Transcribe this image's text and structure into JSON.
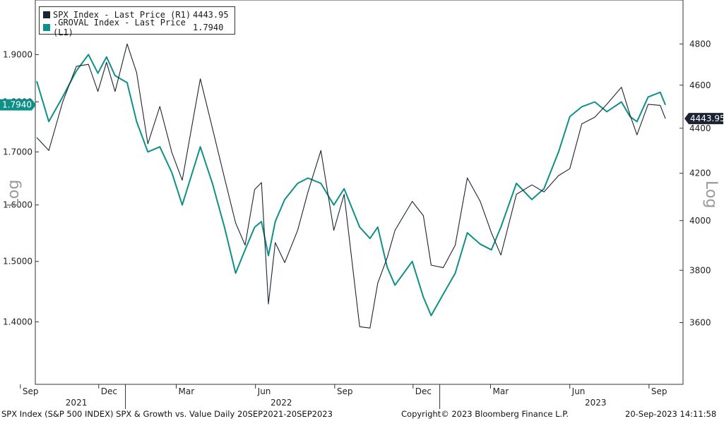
{
  "chart_data": {
    "type": "line",
    "footer": {
      "left": "SPX Index (S&P 500 INDEX) SPX & Growth vs. Value  Daily 20SEP2021-20SEP2023",
      "center": "Copyright© 2023 Bloomberg Finance L.P.",
      "right": "20-Sep-2023 14:11:58"
    },
    "left_axis": {
      "label": "Log",
      "scale": "log",
      "ylim": [
        1.33,
        1.99
      ],
      "ticks": [
        "1.4000",
        "1.5000",
        "1.6000",
        "1.7000",
        "1.8000",
        "1.9000"
      ],
      "tick_values": [
        1.4,
        1.5,
        1.6,
        1.7,
        1.8,
        1.9
      ]
    },
    "right_axis": {
      "label": "Log",
      "scale": "log",
      "ylim": [
        3440,
        4950
      ],
      "ticks": [
        "3600",
        "3800",
        "4000",
        "4200",
        "4400",
        "4600",
        "4800"
      ],
      "tick_values": [
        3600,
        3800,
        4000,
        4200,
        4400,
        4600,
        4800
      ]
    },
    "x_axis": {
      "range": [
        "2021-09-20",
        "2023-09-20"
      ],
      "month_ticks": [
        {
          "label": "Sep",
          "date": "2021-09-01"
        },
        {
          "label": "Dec",
          "date": "2021-12-01"
        },
        {
          "label": "Mar",
          "date": "2022-03-01"
        },
        {
          "label": "Jun",
          "date": "2022-06-01"
        },
        {
          "label": "Sep",
          "date": "2022-09-01"
        },
        {
          "label": "Dec",
          "date": "2022-12-01"
        },
        {
          "label": "Mar",
          "date": "2023-03-01"
        },
        {
          "label": "Jun",
          "date": "2023-06-01"
        },
        {
          "label": "Sep",
          "date": "2023-09-01"
        }
      ],
      "year_labels": [
        {
          "label": "2021",
          "date": "2021-11-05"
        },
        {
          "label": "2022",
          "date": "2022-07-01"
        },
        {
          "label": "2023",
          "date": "2023-07-01"
        }
      ]
    },
    "grid": false,
    "legend_position": "top-left",
    "series": [
      {
        "name": "SPX Index - Last Price (R1)",
        "last_value": "4443.95",
        "axis": "right",
        "color": "#1c2333",
        "points": [
          [
            "2021-09-20",
            4358
          ],
          [
            "2021-10-04",
            4300
          ],
          [
            "2021-10-20",
            4520
          ],
          [
            "2021-11-05",
            4690
          ],
          [
            "2021-11-19",
            4700
          ],
          [
            "2021-11-30",
            4570
          ],
          [
            "2021-12-10",
            4710
          ],
          [
            "2021-12-20",
            4570
          ],
          [
            "2022-01-03",
            4800
          ],
          [
            "2022-01-14",
            4660
          ],
          [
            "2022-01-27",
            4330
          ],
          [
            "2022-02-10",
            4500
          ],
          [
            "2022-02-24",
            4290
          ],
          [
            "2022-03-08",
            4170
          ],
          [
            "2022-03-29",
            4630
          ],
          [
            "2022-04-12",
            4400
          ],
          [
            "2022-04-26",
            4180
          ],
          [
            "2022-05-09",
            3990
          ],
          [
            "2022-05-20",
            3900
          ],
          [
            "2022-05-31",
            4130
          ],
          [
            "2022-06-08",
            4160
          ],
          [
            "2022-06-16",
            3670
          ],
          [
            "2022-06-24",
            3910
          ],
          [
            "2022-07-05",
            3830
          ],
          [
            "2022-07-20",
            3960
          ],
          [
            "2022-08-01",
            4120
          ],
          [
            "2022-08-16",
            4300
          ],
          [
            "2022-08-31",
            3960
          ],
          [
            "2022-09-12",
            4110
          ],
          [
            "2022-09-30",
            3585
          ],
          [
            "2022-10-12",
            3580
          ],
          [
            "2022-10-21",
            3750
          ],
          [
            "2022-11-01",
            3850
          ],
          [
            "2022-11-10",
            3960
          ],
          [
            "2022-11-30",
            4080
          ],
          [
            "2022-12-13",
            4020
          ],
          [
            "2022-12-22",
            3820
          ],
          [
            "2023-01-05",
            3810
          ],
          [
            "2023-01-19",
            3900
          ],
          [
            "2023-02-02",
            4180
          ],
          [
            "2023-02-17",
            4080
          ],
          [
            "2023-03-02",
            3950
          ],
          [
            "2023-03-13",
            3860
          ],
          [
            "2023-03-31",
            4110
          ],
          [
            "2023-04-18",
            4150
          ],
          [
            "2023-05-02",
            4120
          ],
          [
            "2023-05-19",
            4190
          ],
          [
            "2023-06-01",
            4220
          ],
          [
            "2023-06-15",
            4420
          ],
          [
            "2023-06-30",
            4450
          ],
          [
            "2023-07-14",
            4510
          ],
          [
            "2023-07-31",
            4590
          ],
          [
            "2023-08-10",
            4460
          ],
          [
            "2023-08-18",
            4370
          ],
          [
            "2023-08-31",
            4510
          ],
          [
            "2023-09-14",
            4505
          ],
          [
            "2023-09-20",
            4443.95
          ]
        ]
      },
      {
        "name": ".GROVAL Index - Last Price (L1)",
        "last_value": "1.7940",
        "axis": "left",
        "color": "#0e9088",
        "points": [
          [
            "2021-09-20",
            1.843
          ],
          [
            "2021-10-04",
            1.76
          ],
          [
            "2021-10-20",
            1.81
          ],
          [
            "2021-11-05",
            1.865
          ],
          [
            "2021-11-19",
            1.9
          ],
          [
            "2021-11-30",
            1.86
          ],
          [
            "2021-12-10",
            1.895
          ],
          [
            "2021-12-20",
            1.855
          ],
          [
            "2022-01-03",
            1.84
          ],
          [
            "2022-01-14",
            1.76
          ],
          [
            "2022-01-27",
            1.7
          ],
          [
            "2022-02-10",
            1.71
          ],
          [
            "2022-02-24",
            1.66
          ],
          [
            "2022-03-08",
            1.6
          ],
          [
            "2022-03-29",
            1.71
          ],
          [
            "2022-04-12",
            1.64
          ],
          [
            "2022-04-26",
            1.56
          ],
          [
            "2022-05-09",
            1.48
          ],
          [
            "2022-05-20",
            1.52
          ],
          [
            "2022-05-31",
            1.56
          ],
          [
            "2022-06-08",
            1.57
          ],
          [
            "2022-06-16",
            1.51
          ],
          [
            "2022-06-24",
            1.57
          ],
          [
            "2022-07-05",
            1.61
          ],
          [
            "2022-07-20",
            1.64
          ],
          [
            "2022-08-01",
            1.65
          ],
          [
            "2022-08-16",
            1.64
          ],
          [
            "2022-08-31",
            1.6
          ],
          [
            "2022-09-12",
            1.63
          ],
          [
            "2022-09-30",
            1.56
          ],
          [
            "2022-10-12",
            1.54
          ],
          [
            "2022-10-21",
            1.56
          ],
          [
            "2022-11-01",
            1.49
          ],
          [
            "2022-11-10",
            1.46
          ],
          [
            "2022-11-30",
            1.5
          ],
          [
            "2022-12-13",
            1.44
          ],
          [
            "2022-12-22",
            1.41
          ],
          [
            "2023-01-05",
            1.445
          ],
          [
            "2023-01-19",
            1.48
          ],
          [
            "2023-02-02",
            1.55
          ],
          [
            "2023-02-17",
            1.53
          ],
          [
            "2023-03-02",
            1.52
          ],
          [
            "2023-03-13",
            1.56
          ],
          [
            "2023-03-31",
            1.64
          ],
          [
            "2023-04-18",
            1.61
          ],
          [
            "2023-05-02",
            1.63
          ],
          [
            "2023-05-19",
            1.7
          ],
          [
            "2023-06-01",
            1.77
          ],
          [
            "2023-06-15",
            1.79
          ],
          [
            "2023-06-30",
            1.8
          ],
          [
            "2023-07-14",
            1.78
          ],
          [
            "2023-07-31",
            1.8
          ],
          [
            "2023-08-10",
            1.77
          ],
          [
            "2023-08-18",
            1.76
          ],
          [
            "2023-08-31",
            1.81
          ],
          [
            "2023-09-14",
            1.82
          ],
          [
            "2023-09-20",
            1.794
          ]
        ]
      }
    ]
  }
}
